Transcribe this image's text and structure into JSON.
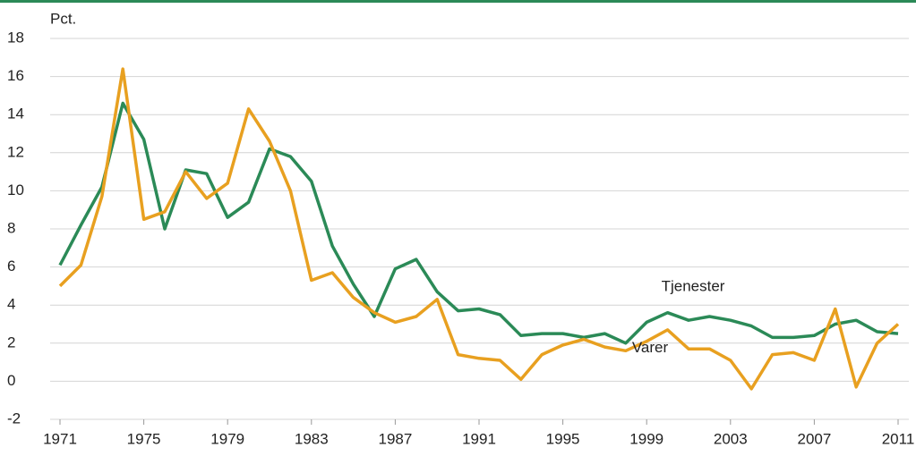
{
  "chart_data": {
    "type": "line",
    "y_label": "Pct.",
    "x": [
      1971,
      1972,
      1973,
      1974,
      1975,
      1976,
      1977,
      1978,
      1979,
      1980,
      1981,
      1982,
      1983,
      1984,
      1985,
      1986,
      1987,
      1988,
      1989,
      1990,
      1991,
      1992,
      1993,
      1994,
      1995,
      1996,
      1997,
      1998,
      1999,
      2000,
      2001,
      2002,
      2003,
      2004,
      2005,
      2006,
      2007,
      2008,
      2009,
      2010,
      2011
    ],
    "series": [
      {
        "name": "Tjenester",
        "color": "#2b8a57",
        "values": [
          6.1,
          8.2,
          10.2,
          14.6,
          12.7,
          8.0,
          11.1,
          10.9,
          8.6,
          9.4,
          12.2,
          11.8,
          10.5,
          7.1,
          5.1,
          3.4,
          5.9,
          6.4,
          4.7,
          3.7,
          3.8,
          3.5,
          2.4,
          2.5,
          2.5,
          2.3,
          2.5,
          2.0,
          3.1,
          3.6,
          3.2,
          3.4,
          3.2,
          2.9,
          2.3,
          2.3,
          2.4,
          3.0,
          3.2,
          2.6,
          2.5
        ]
      },
      {
        "name": "Varer",
        "color": "#e8a020",
        "values": [
          5.0,
          6.1,
          9.7,
          16.4,
          8.5,
          8.9,
          11.0,
          9.6,
          10.4,
          14.3,
          12.6,
          10.0,
          5.3,
          5.7,
          4.4,
          3.6,
          3.1,
          3.4,
          4.3,
          1.4,
          1.2,
          1.1,
          0.1,
          1.4,
          1.9,
          2.2,
          1.8,
          1.6,
          2.1,
          2.7,
          1.7,
          1.7,
          1.1,
          -0.4,
          1.4,
          1.5,
          1.1,
          3.8,
          -0.3,
          2.0,
          3.0
        ]
      }
    ],
    "xlim": [
      1971,
      2011
    ],
    "xticks": [
      1971,
      1975,
      1979,
      1983,
      1987,
      1991,
      1995,
      1999,
      2003,
      2007,
      2011
    ],
    "ylim": [
      -2,
      18
    ],
    "yticks": [
      -2,
      0,
      2,
      4,
      6,
      8,
      10,
      12,
      14,
      16,
      18
    ],
    "grid": true
  }
}
